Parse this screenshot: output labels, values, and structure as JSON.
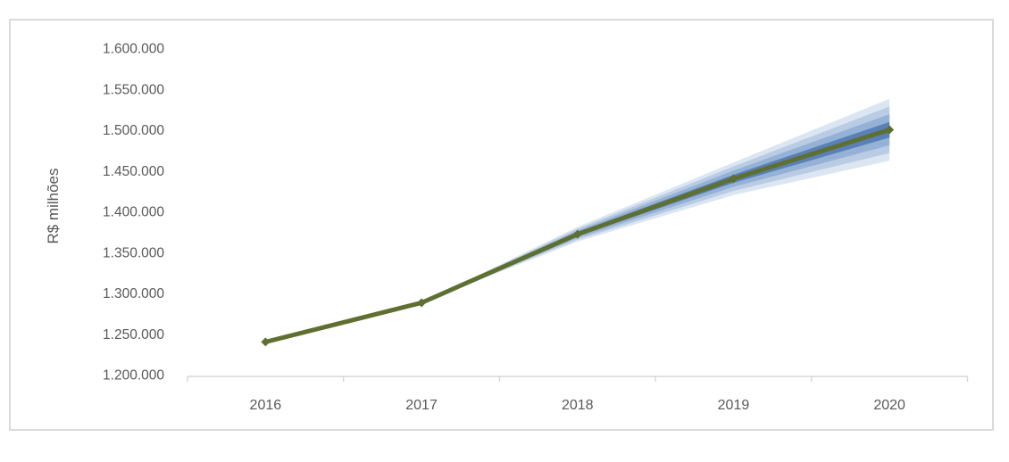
{
  "chart_data": {
    "type": "line",
    "title": "",
    "xlabel": "",
    "ylabel": "R$ milhões",
    "categories": [
      "2016",
      "2017",
      "2018",
      "2019",
      "2020"
    ],
    "values": [
      1240000,
      1288000,
      1372000,
      1440000,
      1500000
    ],
    "ylim": [
      1200000,
      1600000
    ],
    "y_tick_values": [
      1600000,
      1550000,
      1500000,
      1450000,
      1400000,
      1350000,
      1300000,
      1250000,
      1200000
    ],
    "y_tick_labels": [
      "1.600.000",
      "1.550.000",
      "1.500.000",
      "1.450.000",
      "1.400.000",
      "1.350.000",
      "1.300.000",
      "1.250.000",
      "1.200.000"
    ],
    "grid": false,
    "legend_position": "none",
    "fan": {
      "note": "confidence fan widening from 2017 to 2020",
      "start_index": 1,
      "half_widths": [
        0,
        0,
        9000,
        20000,
        38000
      ],
      "bands_per_side": 4,
      "band_colors_outer_to_inner": [
        "#dce6f2",
        "#b9cce4",
        "#95b1d6",
        "#5a80b8"
      ]
    },
    "colors": {
      "line": "#5e7031",
      "axis": "#d6d6d6",
      "frame": "#dbdbdb",
      "text": "#595959"
    }
  }
}
